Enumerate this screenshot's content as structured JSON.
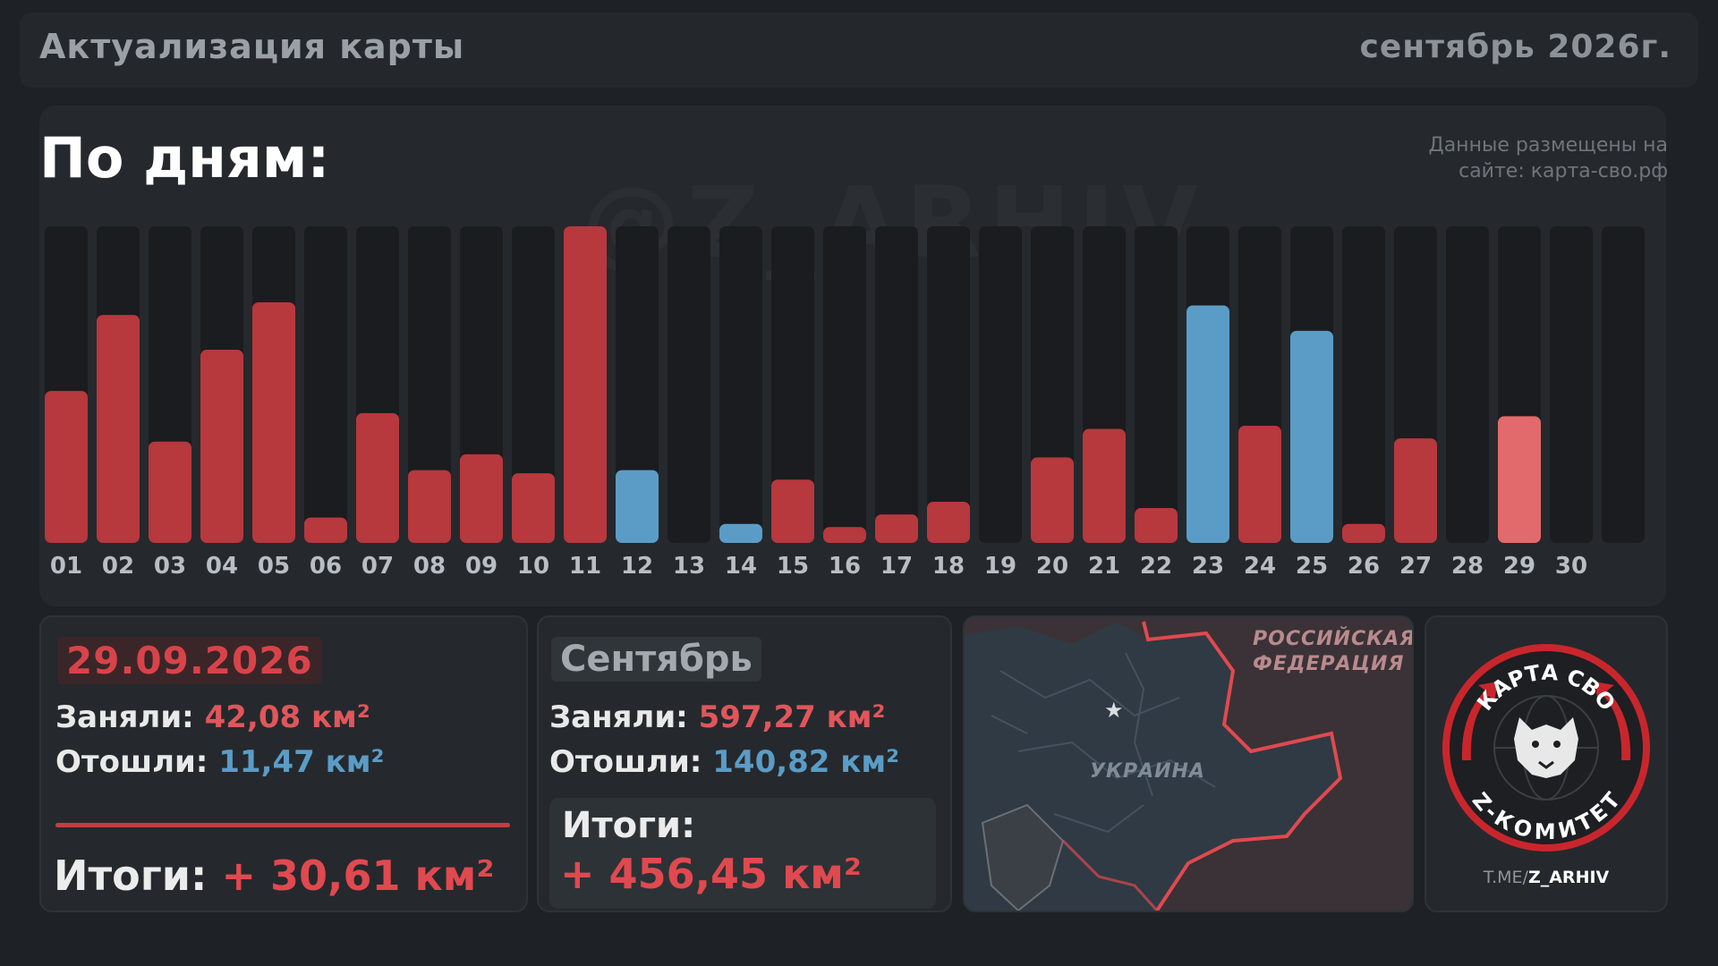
{
  "header": {
    "title": "Актуализация карты",
    "period": "сентябрь 2026г."
  },
  "section": {
    "title": "По дням:",
    "source_line1": "Данные размещены на",
    "source_line2": "сайте: карта-сво.рф",
    "watermark": "@Z_ARHIV"
  },
  "colors": {
    "captured": "#b7383d",
    "captured_today": "#e36a6c",
    "lost": "#5b9cc6",
    "track": "#1a1c1f",
    "tick": "#b8bec3"
  },
  "chart_data": {
    "type": "bar",
    "categories": [
      "01",
      "02",
      "03",
      "04",
      "05",
      "06",
      "07",
      "08",
      "09",
      "10",
      "11",
      "12",
      "13",
      "14",
      "15",
      "16",
      "17",
      "18",
      "19",
      "20",
      "21",
      "22",
      "23",
      "24",
      "25",
      "26",
      "27",
      "28",
      "29",
      "30"
    ],
    "values": [
      48,
      72,
      32,
      61,
      76,
      8,
      41,
      23,
      28,
      22,
      100,
      23,
      0,
      6,
      20,
      5,
      9,
      13,
      0,
      27,
      36,
      11,
      75,
      37,
      67,
      6,
      33,
      0,
      40,
      0
    ],
    "bar_kind": [
      "captured",
      "captured",
      "captured",
      "captured",
      "captured",
      "captured",
      "captured",
      "captured",
      "captured",
      "captured",
      "captured",
      "lost",
      "none",
      "lost",
      "captured",
      "captured",
      "captured",
      "captured",
      "none",
      "captured",
      "captured",
      "captured",
      "lost",
      "captured",
      "lost",
      "captured",
      "captured",
      "none",
      "captured_today",
      "none"
    ],
    "ylim": [
      0,
      100
    ],
    "grid": false,
    "legend": "none"
  },
  "day_card": {
    "date": "29.09.2026",
    "captured_label": "Заняли:",
    "captured_value": "42,08",
    "lost_label": "Отошли:",
    "lost_value": "11,47",
    "unit": "км²",
    "total_label": "Итоги:",
    "total_value": "+ 30,61 км²"
  },
  "month_card": {
    "month": "Сентябрь",
    "captured_label": "Заняли:",
    "captured_value": "597,27",
    "lost_label": "Отошли:",
    "lost_value": "140,82",
    "unit": "км²",
    "total_label": "Итоги:",
    "total_value": "+ 456,45 км²"
  },
  "map": {
    "label_russia_1": "РОССИЙСКАЯ",
    "label_russia_2": "ФЕДЕРАЦИЯ",
    "label_ukraine": "УКРАИНА"
  },
  "logo": {
    "top_text": "КАРТА СВО",
    "bottom_text": "Z-КОМИТЕТ",
    "footer_prefix": "T.ME/",
    "footer_handle": "Z_ARHIV"
  }
}
